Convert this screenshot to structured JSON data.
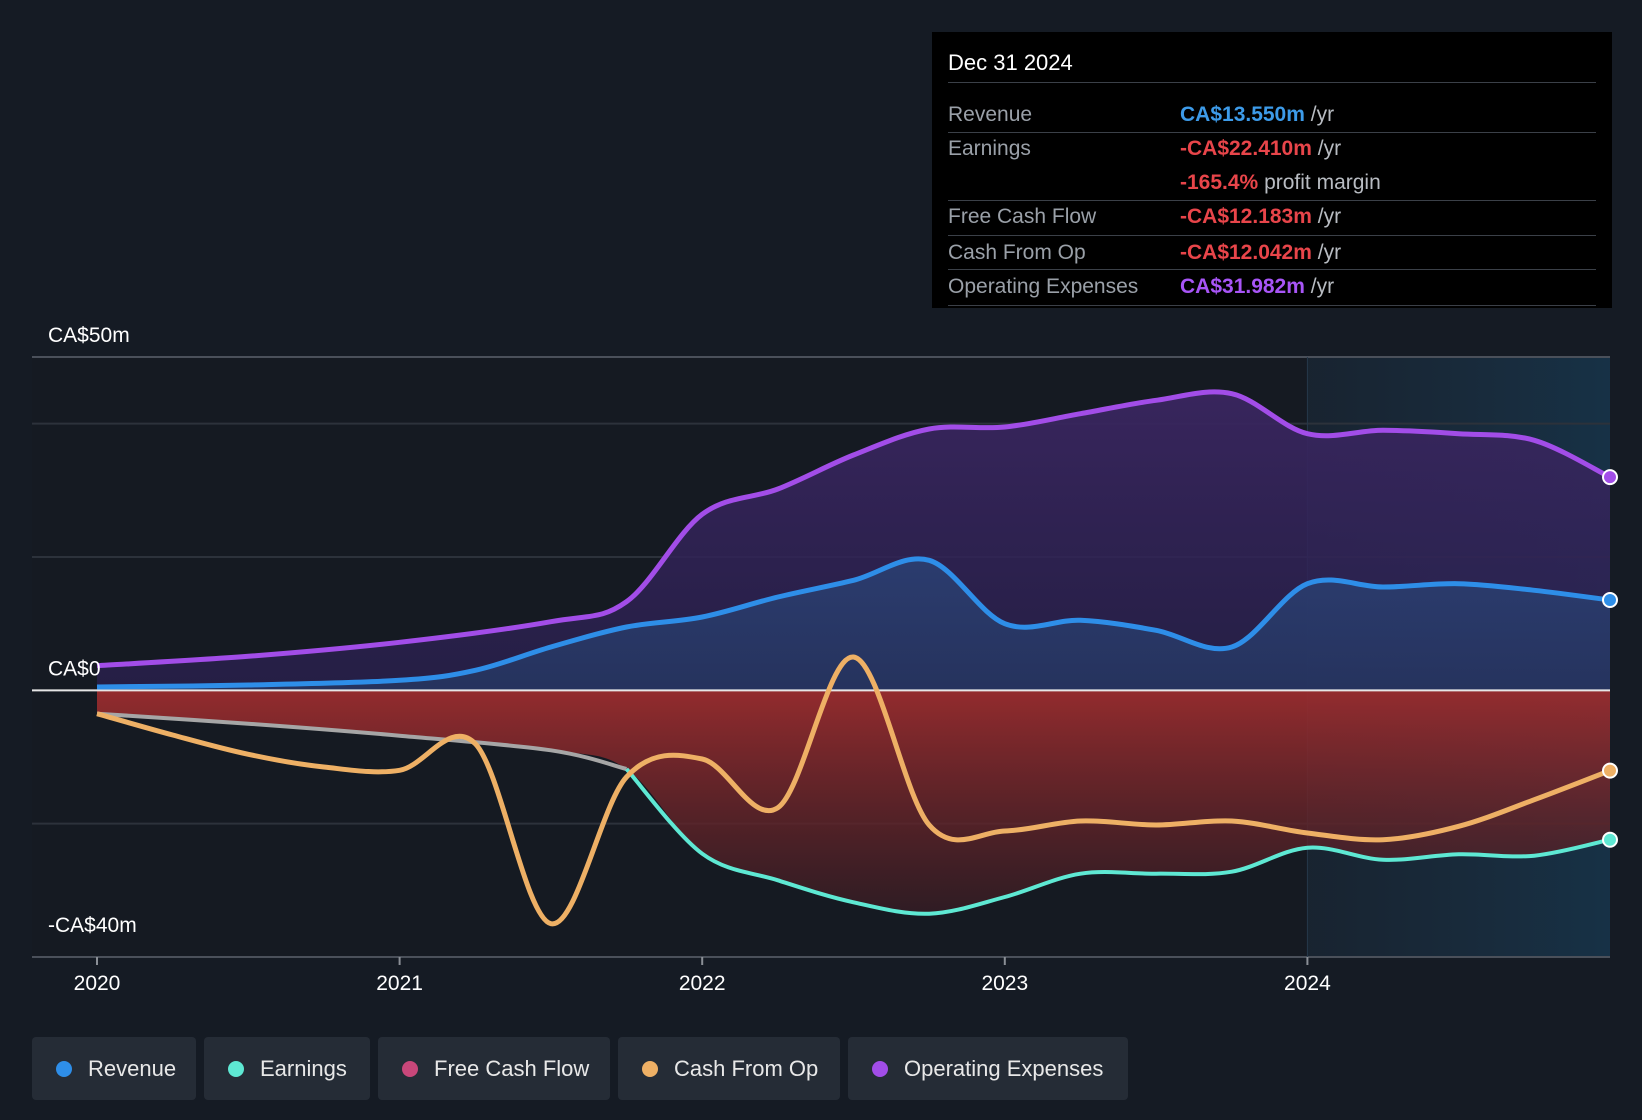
{
  "colors": {
    "background": "#151b24",
    "revenue": "#2e8ee8",
    "earnings": "#5ee8d3",
    "free_cash_flow": "#c9477a",
    "cash_from_op": "#eeb065",
    "operating_expenses": "#a24de8",
    "negative_fill": "#8b2b2e",
    "prior_earnings": "#a6a6a6"
  },
  "tooltip": {
    "date": "Dec 31 2024",
    "rows": [
      {
        "label": "Revenue",
        "value": "CA$13.550m",
        "unit": "/yr",
        "color": "#3d9be9"
      },
      {
        "label": "Earnings",
        "value": "-CA$22.410m",
        "unit": "/yr",
        "color": "#e8454a"
      },
      {
        "label": "",
        "value": "-165.4%",
        "unit": "profit margin",
        "color": "#e8454a"
      },
      {
        "label": "Free Cash Flow",
        "value": "-CA$12.183m",
        "unit": "/yr",
        "color": "#e8454a"
      },
      {
        "label": "Cash From Op",
        "value": "-CA$12.042m",
        "unit": "/yr",
        "color": "#e8454a"
      },
      {
        "label": "Operating Expenses",
        "value": "CA$31.982m",
        "unit": "/yr",
        "color": "#a855f7"
      }
    ]
  },
  "legend": [
    {
      "label": "Revenue",
      "color": "#2e8ee8"
    },
    {
      "label": "Earnings",
      "color": "#5ee8d3"
    },
    {
      "label": "Free Cash Flow",
      "color": "#c9477a"
    },
    {
      "label": "Cash From Op",
      "color": "#eeb065"
    },
    {
      "label": "Operating Expenses",
      "color": "#a24de8"
    }
  ],
  "chart_data": {
    "type": "area",
    "title": "",
    "y_labels": [
      "CA$50m",
      "CA$0",
      "-CA$40m"
    ],
    "ylim": [
      -40,
      50
    ],
    "xlim": [
      2020.0,
      2025.0
    ],
    "x_ticks": [
      "2020",
      "2021",
      "2022",
      "2023",
      "2024"
    ],
    "x_tick_values": [
      2020,
      2021,
      2022,
      2023,
      2024
    ],
    "forecast_start": 2024.0,
    "series": [
      {
        "name": "Operating Expenses",
        "x": [
          2020.0,
          2020.5,
          2021.0,
          2021.5,
          2021.75,
          2022.0,
          2022.25,
          2022.5,
          2022.75,
          2023.0,
          2023.25,
          2023.5,
          2023.75,
          2024.0,
          2024.25,
          2024.5,
          2024.75,
          2025.0
        ],
        "values": [
          3.7,
          5.1,
          7.2,
          10.3,
          13.3,
          26.4,
          30.2,
          35.3,
          39.2,
          39.5,
          41.5,
          43.5,
          44.5,
          38.5,
          39.0,
          38.5,
          37.5,
          31.982
        ]
      },
      {
        "name": "Revenue",
        "x": [
          2020.0,
          2020.5,
          2021.0,
          2021.25,
          2021.5,
          2021.75,
          2022.0,
          2022.25,
          2022.5,
          2022.75,
          2023.0,
          2023.25,
          2023.5,
          2023.75,
          2024.0,
          2024.25,
          2024.5,
          2024.75,
          2025.0
        ],
        "values": [
          0.5,
          0.8,
          1.5,
          3.0,
          6.5,
          9.5,
          11.0,
          14.0,
          16.5,
          19.5,
          10.0,
          10.5,
          9.0,
          6.5,
          16.0,
          15.5,
          16.0,
          15.0,
          13.55
        ]
      },
      {
        "name": "Earnings",
        "x": [
          2020.0,
          2020.5,
          2021.0,
          2021.5,
          2021.75,
          2022.0,
          2022.25,
          2022.5,
          2022.75,
          2023.0,
          2023.25,
          2023.5,
          2023.75,
          2024.0,
          2024.25,
          2024.5,
          2024.75,
          2025.0
        ],
        "values": [
          -3.5,
          -5.0,
          -6.8,
          -9.0,
          -11.8,
          -24.5,
          -28.5,
          -31.8,
          -33.5,
          -31.0,
          -27.5,
          -27.5,
          -27.2,
          -23.6,
          -25.4,
          -24.6,
          -24.8,
          -22.41
        ]
      },
      {
        "name": "Cash From Op",
        "x": [
          2020.0,
          2020.25,
          2020.5,
          2020.75,
          2021.0,
          2021.25,
          2021.5,
          2021.75,
          2022.0,
          2022.25,
          2022.5,
          2022.75,
          2023.0,
          2023.25,
          2023.5,
          2023.75,
          2024.0,
          2024.25,
          2024.5,
          2024.75,
          2025.0
        ],
        "values": [
          -3.5,
          -6.7,
          -9.6,
          -11.5,
          -12.0,
          -8.0,
          -35.0,
          -13.0,
          -10.3,
          -17.6,
          5.0,
          -20.2,
          -21.1,
          -19.6,
          -20.2,
          -19.6,
          -21.4,
          -22.4,
          -20.4,
          -16.4,
          -12.042
        ]
      }
    ]
  }
}
